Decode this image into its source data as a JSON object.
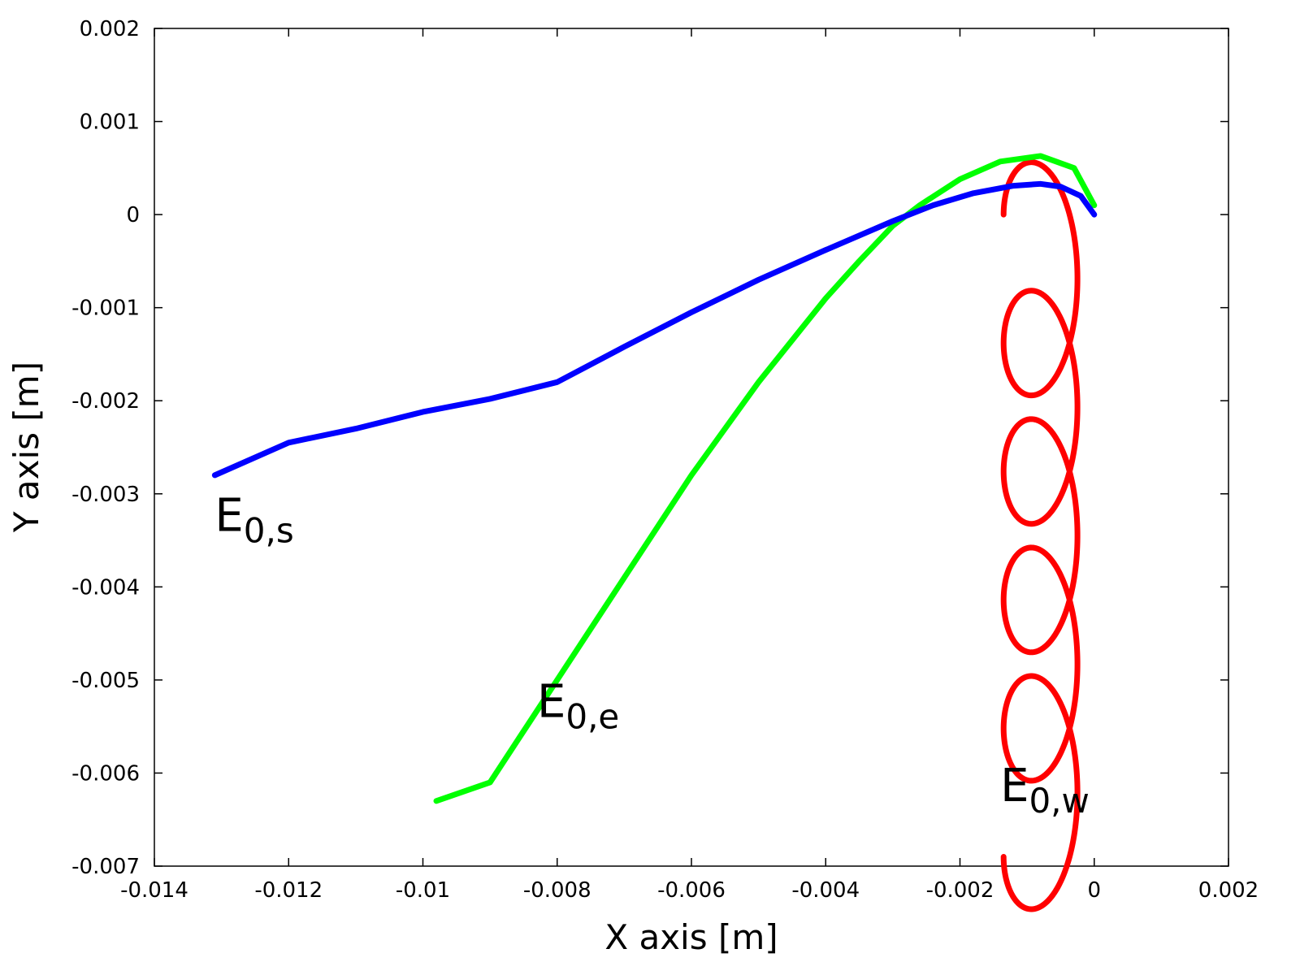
{
  "chart_data": {
    "type": "line",
    "xlabel": "X axis [m]",
    "ylabel": "Y axis [m]",
    "xlim": [
      -0.014,
      0.002
    ],
    "ylim": [
      -0.007,
      0.002
    ],
    "xticks": [
      "-0.014",
      "-0.012",
      "-0.01",
      "-0.008",
      "-0.006",
      "-0.004",
      "-0.002",
      "0",
      "0.002"
    ],
    "yticks": [
      "0.002",
      "0.001",
      "0",
      "-0.001",
      "-0.002",
      "-0.003",
      "-0.004",
      "-0.005",
      "-0.006",
      "-0.007"
    ],
    "grid": false,
    "series": [
      {
        "key": "s",
        "color": "#0000ff",
        "points": [
          [
            0.0,
            0.0
          ],
          [
            -0.0002,
            0.0002
          ],
          [
            -0.0005,
            0.0003
          ],
          [
            -0.0008,
            0.00033
          ],
          [
            -0.0012,
            0.00031
          ],
          [
            -0.0018,
            0.00023
          ],
          [
            -0.0024,
            0.0001
          ],
          [
            -0.003,
            -7e-05
          ],
          [
            -0.004,
            -0.00038
          ],
          [
            -0.005,
            -0.0007
          ],
          [
            -0.006,
            -0.00105
          ],
          [
            -0.007,
            -0.00142
          ],
          [
            -0.008,
            -0.0018
          ],
          [
            -0.009,
            -0.00198
          ],
          [
            -0.01,
            -0.00212
          ],
          [
            -0.011,
            -0.0023
          ],
          [
            -0.012,
            -0.00245
          ],
          [
            -0.0131,
            -0.0028
          ]
        ]
      },
      {
        "key": "e",
        "color": "#00ff00",
        "points": [
          [
            0.0,
            0.0001
          ],
          [
            -0.0003,
            0.0005
          ],
          [
            -0.0008,
            0.00063
          ],
          [
            -0.0014,
            0.00057
          ],
          [
            -0.002,
            0.00038
          ],
          [
            -0.0026,
            0.0001
          ],
          [
            -0.003,
            -0.00012
          ],
          [
            -0.0035,
            -0.0005
          ],
          [
            -0.004,
            -0.0009
          ],
          [
            -0.005,
            -0.0018
          ],
          [
            -0.006,
            -0.0028
          ],
          [
            -0.007,
            -0.0039
          ],
          [
            -0.008,
            -0.005
          ],
          [
            -0.009,
            -0.0061
          ],
          [
            -0.0098,
            -0.0063
          ]
        ]
      },
      {
        "key": "w",
        "color": "#ff0000",
        "trochoid": {
          "x_center": -0.0008,
          "radius_x": 0.00055,
          "radius_y": 0.00088,
          "y_start": 0.0,
          "y_end": -0.0069,
          "loops": 5
        }
      }
    ],
    "annotations": [
      {
        "key": "s",
        "main": "E",
        "sub": "0,s",
        "x": -0.0131,
        "y": -0.0034
      },
      {
        "key": "e",
        "main": "E",
        "sub": "0,e",
        "x": -0.0083,
        "y": -0.0054
      },
      {
        "key": "w",
        "main": "E",
        "sub": "0,w",
        "x": -0.0014,
        "y": -0.0063
      }
    ]
  }
}
